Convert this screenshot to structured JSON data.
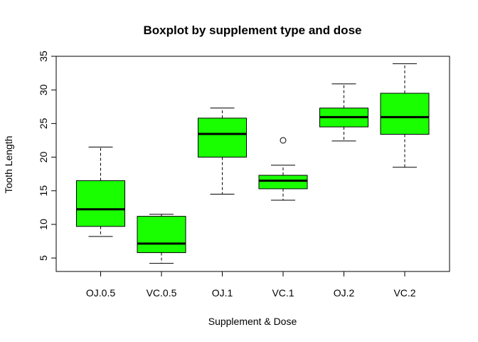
{
  "chart_data": {
    "type": "boxplot",
    "title": "Boxplot by supplement type and dose",
    "xlabel": "Supplement & Dose",
    "ylabel": "Tooth Length",
    "categories": [
      "OJ.0.5",
      "VC.0.5",
      "OJ.1",
      "VC.1",
      "OJ.2",
      "VC.2"
    ],
    "ylim": [
      3,
      35
    ],
    "yticks": [
      5,
      10,
      15,
      20,
      25,
      30,
      35
    ],
    "box_color": "#1aff00",
    "boxes": [
      {
        "name": "OJ.0.5",
        "min": 8.2,
        "q1": 9.7,
        "median": 12.25,
        "q3": 16.5,
        "max": 21.5,
        "outliers": []
      },
      {
        "name": "VC.0.5",
        "min": 4.2,
        "q1": 5.8,
        "median": 7.15,
        "q3": 11.2,
        "max": 11.5,
        "outliers": []
      },
      {
        "name": "OJ.1",
        "min": 14.5,
        "q1": 20.0,
        "median": 23.45,
        "q3": 25.8,
        "max": 27.3,
        "outliers": []
      },
      {
        "name": "VC.1",
        "min": 13.6,
        "q1": 15.3,
        "median": 16.5,
        "q3": 17.3,
        "max": 18.8,
        "outliers": [
          22.5
        ]
      },
      {
        "name": "OJ.2",
        "min": 22.4,
        "q1": 24.5,
        "median": 25.95,
        "q3": 27.3,
        "max": 30.9,
        "outliers": []
      },
      {
        "name": "VC.2",
        "min": 18.5,
        "q1": 23.4,
        "median": 25.95,
        "q3": 29.5,
        "max": 33.9,
        "outliers": []
      }
    ]
  }
}
